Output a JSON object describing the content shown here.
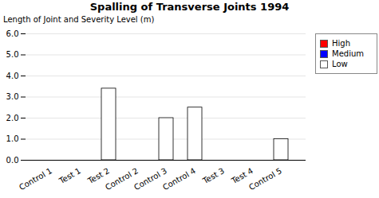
{
  "chart_data": {
    "type": "bar",
    "stacked": true,
    "title": "Spalling of Transverse Joints 1994",
    "ylabel": "Length of Joint and Severity Level (m)",
    "categories": [
      "Control 1",
      "Test 1",
      "Test 2",
      "Control 2",
      "Control 3",
      "Control 4",
      "Test 3",
      "Test 4",
      "Control 5"
    ],
    "series": [
      {
        "name": "Low",
        "color": "#ffffff",
        "values": [
          0,
          0,
          3.4,
          0,
          2.0,
          2.5,
          0,
          0,
          1.0
        ]
      },
      {
        "name": "Medium",
        "color": "#0000ff",
        "values": [
          0,
          0,
          0,
          0,
          0,
          0,
          0,
          0,
          0
        ]
      },
      {
        "name": "High",
        "color": "#ff0000",
        "values": [
          0,
          0,
          0,
          0,
          0,
          0,
          0,
          0,
          0
        ]
      }
    ],
    "ylim": [
      0,
      6
    ],
    "yticks": [
      0,
      1,
      2,
      3,
      4,
      5,
      6
    ],
    "grid": true,
    "legend": "right"
  }
}
